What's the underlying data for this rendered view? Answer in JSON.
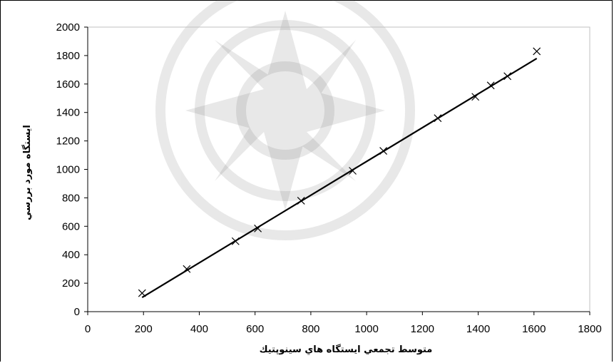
{
  "chart_data": {
    "type": "scatter",
    "title": "",
    "xlabel": "متوسط تجمعي ايستگاه هاي سينوپتيك",
    "ylabel": "ايستگاه مورد بررسي",
    "xlim": [
      0,
      1800
    ],
    "ylim": [
      0,
      2000
    ],
    "xticks": [
      0,
      200,
      400,
      600,
      800,
      1000,
      1200,
      1400,
      1600,
      1800
    ],
    "yticks": [
      0,
      200,
      400,
      600,
      800,
      1000,
      1200,
      1400,
      1600,
      1800,
      2000
    ],
    "grid": {
      "x": false,
      "y": false
    },
    "legend": "none",
    "marker": "x",
    "points": [
      {
        "x": 195,
        "y": 130
      },
      {
        "x": 355,
        "y": 300
      },
      {
        "x": 530,
        "y": 495
      },
      {
        "x": 610,
        "y": 585
      },
      {
        "x": 765,
        "y": 780
      },
      {
        "x": 950,
        "y": 990
      },
      {
        "x": 1060,
        "y": 1130
      },
      {
        "x": 1255,
        "y": 1360
      },
      {
        "x": 1390,
        "y": 1510
      },
      {
        "x": 1445,
        "y": 1590
      },
      {
        "x": 1505,
        "y": 1655
      },
      {
        "x": 1610,
        "y": 1830
      }
    ],
    "trendline": {
      "from": {
        "x": 195,
        "y": 100
      },
      "to": {
        "x": 1610,
        "y": 1780
      }
    },
    "colors": {
      "marker": "#000000",
      "line": "#000000",
      "axis": "#000000",
      "plot_border": "#c0c0c0"
    }
  }
}
